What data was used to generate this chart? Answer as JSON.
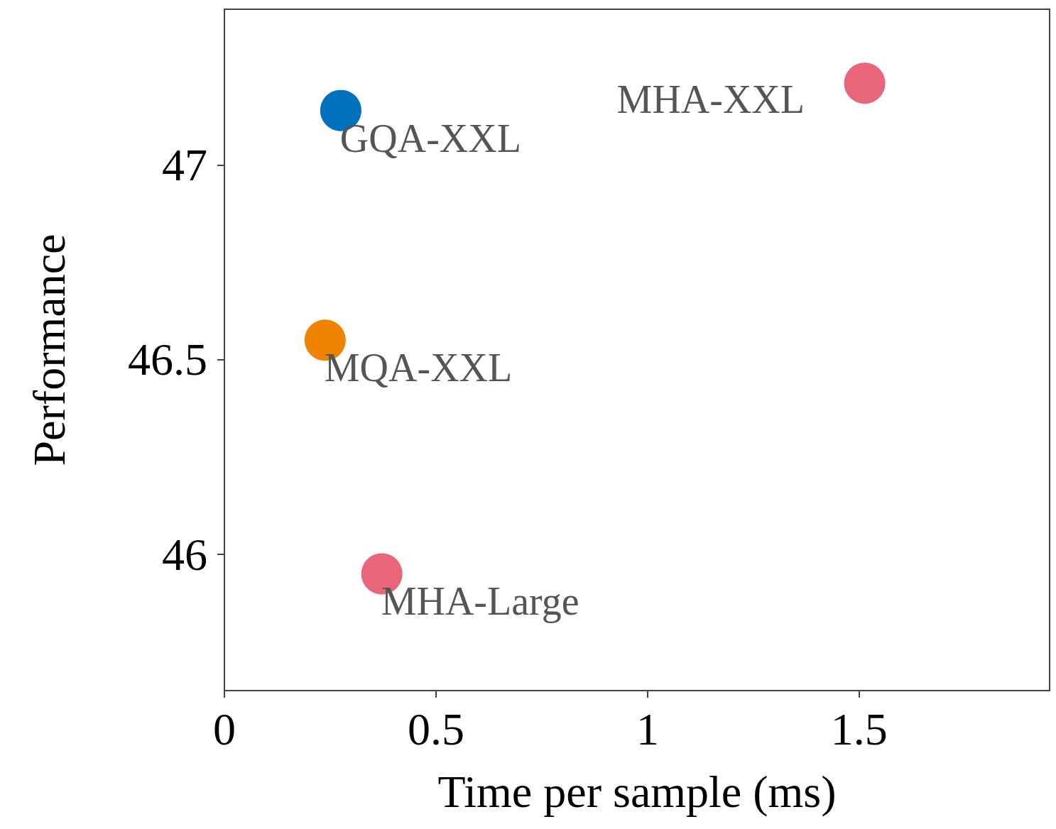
{
  "chart_data": {
    "type": "scatter",
    "xlabel": "Time per sample (ms)",
    "ylabel": "Performance",
    "series": [
      {
        "name": "GQA-XXL",
        "color": "#0072bd",
        "x": [
          0.275
        ],
        "values": [
          47.14
        ]
      },
      {
        "name": "MHA-XXL",
        "color": "#e8667a",
        "x": [
          1.513
        ],
        "values": [
          47.21
        ]
      },
      {
        "name": "MQA-XXL",
        "color": "#ef8200",
        "x": [
          0.238
        ],
        "values": [
          46.55
        ]
      },
      {
        "name": "MHA-Large",
        "color": "#e8667a",
        "x": [
          0.372
        ],
        "values": [
          45.95
        ]
      }
    ],
    "xlim": [
      0,
      1.95
    ],
    "ylim": [
      45.65,
      47.4
    ],
    "xticks": [
      0,
      0.5,
      1,
      1.5
    ],
    "yticks": [
      46,
      46.5,
      47
    ],
    "grid": false,
    "legend": false,
    "marker": "circle"
  }
}
